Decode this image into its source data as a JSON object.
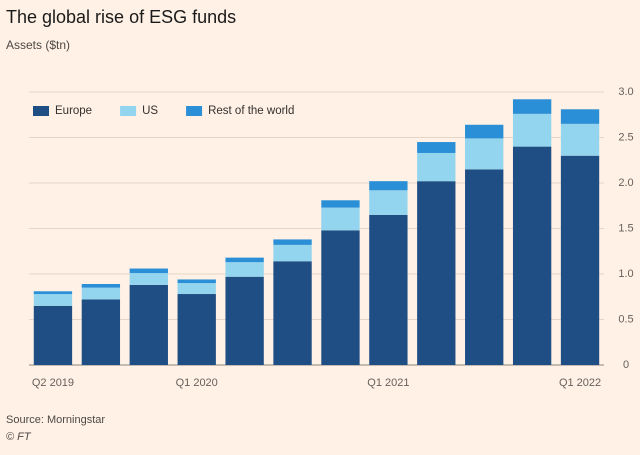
{
  "chart_data": {
    "type": "stacked-bar",
    "title": "The global rise of ESG funds",
    "subtitle": "Assets ($tn)",
    "source": "Source: Morningstar",
    "credit": "© FT",
    "categories": [
      "Q2 2019",
      null,
      null,
      "Q1 2020",
      null,
      null,
      null,
      "Q1 2021",
      null,
      null,
      null,
      "Q1 2022"
    ],
    "series": [
      {
        "name": "Europe",
        "color": "#1f4e84",
        "values": [
          0.65,
          0.72,
          0.88,
          0.78,
          0.97,
          1.14,
          1.48,
          1.65,
          2.02,
          2.15,
          2.4,
          2.3
        ]
      },
      {
        "name": "US",
        "color": "#93d4ee",
        "values": [
          0.13,
          0.13,
          0.13,
          0.12,
          0.16,
          0.18,
          0.25,
          0.27,
          0.31,
          0.34,
          0.36,
          0.35
        ]
      },
      {
        "name": "Rest of the world",
        "color": "#2a8fd6",
        "values": [
          0.03,
          0.04,
          0.05,
          0.04,
          0.05,
          0.06,
          0.08,
          0.1,
          0.12,
          0.15,
          0.16,
          0.16
        ]
      }
    ],
    "ylim": [
      0,
      3
    ],
    "yticks": [
      0,
      0.5,
      {
        "value": 1,
        "label": "1.0"
      },
      1.5,
      {
        "value": 2,
        "label": "2.0"
      },
      2.5,
      {
        "value": 3,
        "label": "3.0"
      }
    ],
    "grid": true,
    "y_axis_side": "right",
    "legend": "top-left"
  }
}
